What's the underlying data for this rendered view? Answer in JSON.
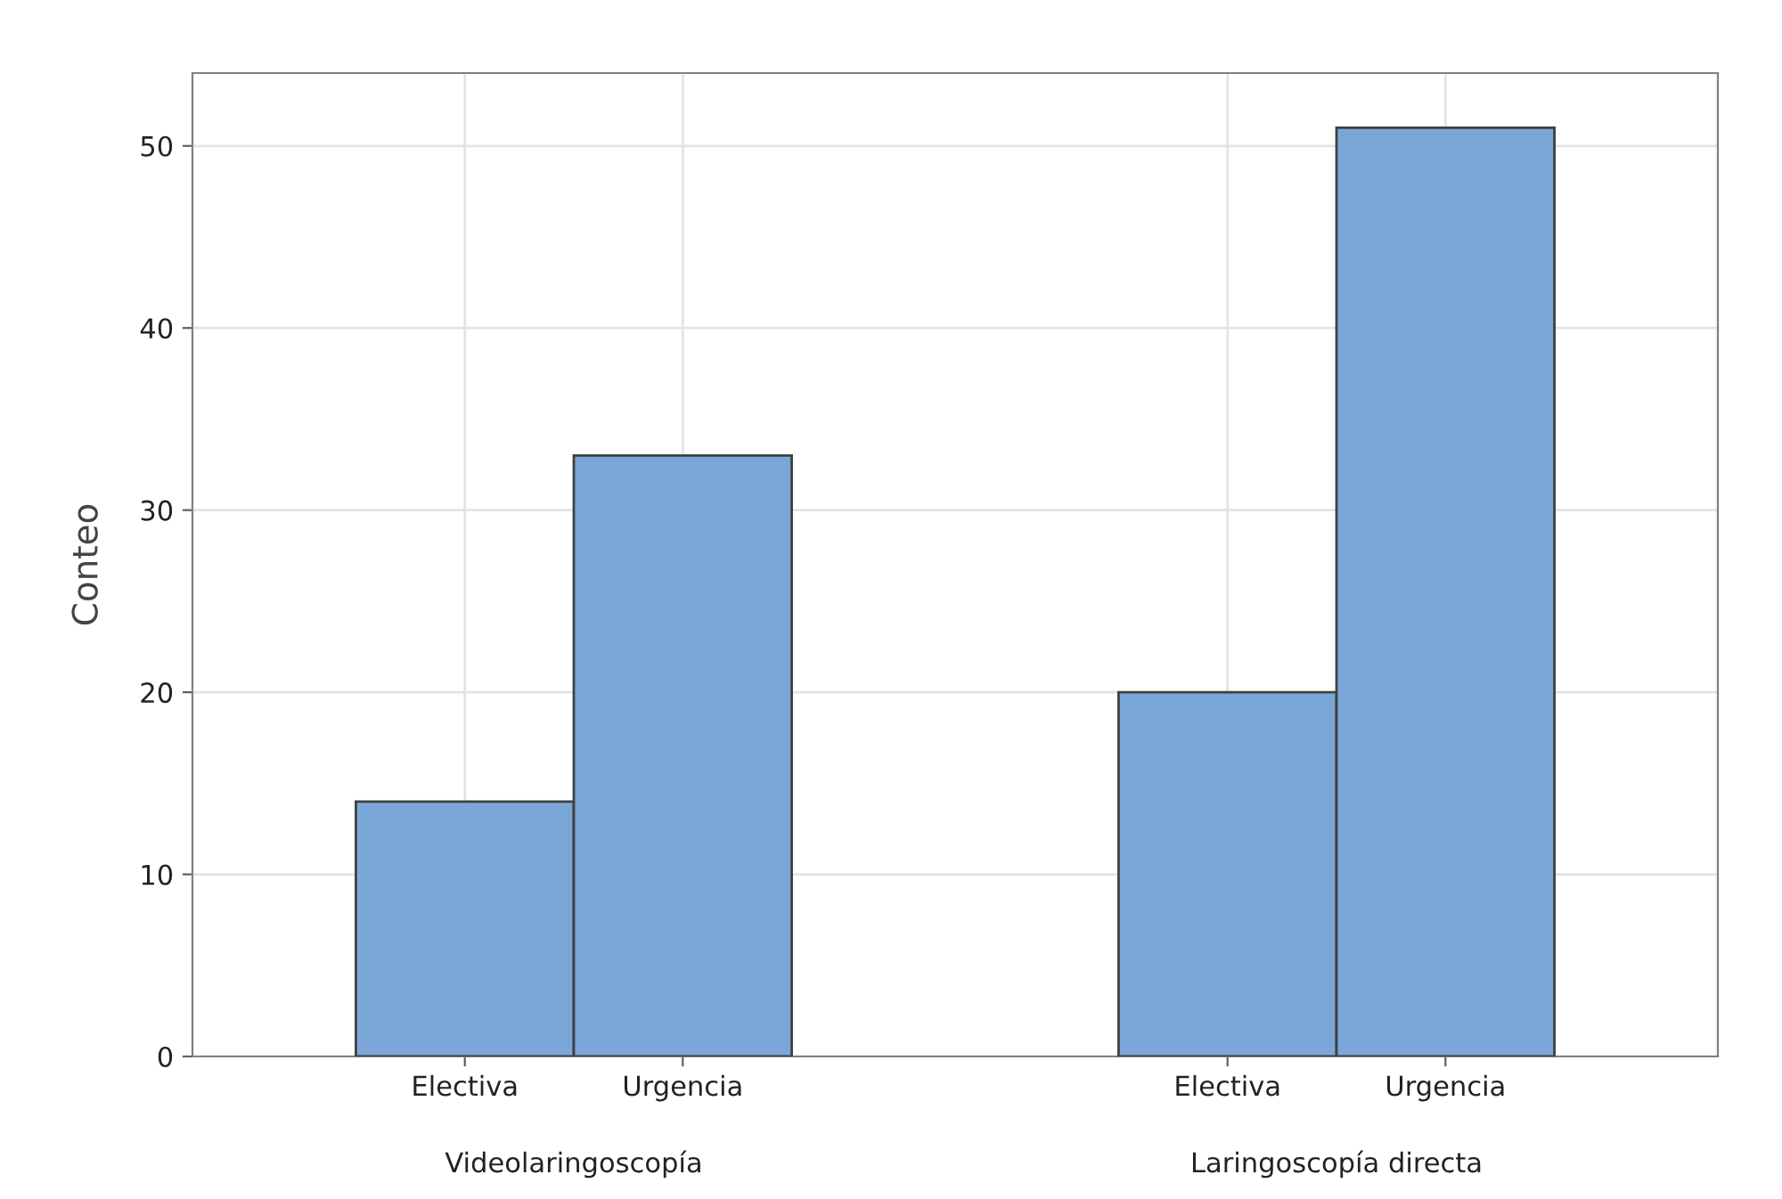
{
  "chart_data": {
    "type": "bar",
    "ylabel": "Conteo",
    "categories": [
      "Electiva",
      "Urgencia",
      "Electiva",
      "Urgencia"
    ],
    "values": [
      14,
      33,
      20,
      51
    ],
    "color": "#7ba7d8",
    "annotations": [
      "Videolaringoscopía",
      "Laringoscopía directa"
    ],
    "ylim": [
      0,
      54
    ],
    "yticks": [
      0,
      10,
      20,
      30,
      40,
      50
    ],
    "grid": true
  }
}
